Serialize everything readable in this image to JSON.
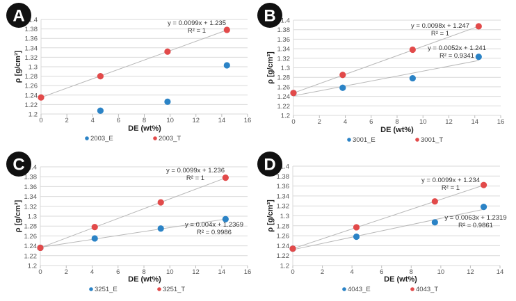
{
  "colors": {
    "E": "#2b83c6",
    "T": "#e24a4a",
    "trend": "#b8b8b8",
    "grid": "#d9d9d9"
  },
  "chart_data": [
    {
      "panel": "A",
      "type": "scatter",
      "xlabel": "DE (wt%)",
      "ylabel": "ρ [g/cm³]",
      "xlim": [
        0,
        16
      ],
      "xticks": [
        "0",
        "2",
        "4",
        "6",
        "8",
        "10",
        "12",
        "14",
        "16"
      ],
      "ylim": [
        1.2,
        1.4
      ],
      "yticks": [
        "1.2",
        "1.22",
        "1.24",
        "1.26",
        "1.28",
        "1.3",
        "1.32",
        "1.34",
        "1.36",
        "1.38",
        "1.4"
      ],
      "grid": true,
      "legend": "bottom",
      "series": [
        {
          "name": "2003_E",
          "x": [
            4.6,
            9.8,
            14.4
          ],
          "y": [
            1.207,
            1.226,
            1.303
          ],
          "trend": null
        },
        {
          "name": "2003_T",
          "x": [
            0,
            4.6,
            9.8,
            14.4
          ],
          "y": [
            1.235,
            1.28,
            1.332,
            1.378
          ],
          "trend": {
            "slope": 0.0099,
            "intercept": 1.235,
            "equation": "y = 0.0099x + 1.235",
            "r2": "R² = 1"
          }
        }
      ]
    },
    {
      "panel": "B",
      "type": "scatter",
      "xlabel": "DE (wt%)",
      "ylabel": "ρ [g/cm³]",
      "xlim": [
        0,
        16
      ],
      "xticks": [
        "0",
        "2",
        "4",
        "6",
        "8",
        "10",
        "12",
        "14",
        "16"
      ],
      "ylim": [
        1.2,
        1.4
      ],
      "yticks": [
        "1.2",
        "1.22",
        "1.24",
        "1.26",
        "1.28",
        "1.3",
        "1.32",
        "1.34",
        "1.36",
        "1.38",
        "1.4"
      ],
      "grid": true,
      "legend": "bottom",
      "series": [
        {
          "name": "3001_E",
          "x": [
            0,
            3.8,
            9.2,
            14.3
          ],
          "y": [
            1.247,
            1.258,
            1.278,
            1.323
          ],
          "trend": {
            "slope": 0.0052,
            "intercept": 1.241,
            "equation": "y = 0.0052x + 1.241",
            "r2": "R² = 0.9341"
          }
        },
        {
          "name": "3001_T",
          "x": [
            0,
            3.8,
            9.2,
            14.3
          ],
          "y": [
            1.247,
            1.285,
            1.338,
            1.387
          ],
          "trend": {
            "slope": 0.0098,
            "intercept": 1.247,
            "equation": "y = 0.0098x + 1.247",
            "r2": "R² = 1"
          }
        }
      ]
    },
    {
      "panel": "C",
      "type": "scatter",
      "xlabel": "DE (wt%)",
      "ylabel": "ρ [g/cm³]",
      "xlim": [
        0,
        16
      ],
      "xticks": [
        "0",
        "2",
        "4",
        "6",
        "8",
        "10",
        "12",
        "14",
        "16"
      ],
      "ylim": [
        1.2,
        1.4
      ],
      "yticks": [
        "1.2",
        "1.22",
        "1.24",
        "1.26",
        "1.28",
        "1.3",
        "1.32",
        "1.34",
        "1.36",
        "1.38",
        "1.4"
      ],
      "grid": true,
      "legend": "bottom",
      "series": [
        {
          "name": "3251_E",
          "x": [
            0,
            4.2,
            9.3,
            14.3
          ],
          "y": [
            1.236,
            1.255,
            1.275,
            1.294
          ],
          "trend": {
            "slope": 0.004,
            "intercept": 1.2369,
            "equation": "y = 0.004x + 1.2369",
            "r2": "R² = 0.9986"
          }
        },
        {
          "name": "3251_T",
          "x": [
            0,
            4.2,
            9.3,
            14.3
          ],
          "y": [
            1.236,
            1.278,
            1.328,
            1.378
          ],
          "trend": {
            "slope": 0.0099,
            "intercept": 1.236,
            "equation": "y = 0.0099x + 1.236",
            "r2": "R² = 1"
          }
        }
      ]
    },
    {
      "panel": "D",
      "type": "scatter",
      "xlabel": "DE (wt%)",
      "ylabel": "ρ [g/cm³]",
      "xlim": [
        0,
        14
      ],
      "xticks": [
        "0",
        "2",
        "4",
        "6",
        "8",
        "10",
        "12",
        "14"
      ],
      "ylim": [
        1.2,
        1.4
      ],
      "yticks": [
        "1.2",
        "1.22",
        "1.24",
        "1.26",
        "1.28",
        "1.3",
        "1.32",
        "1.34",
        "1.36",
        "1.38",
        "1.4"
      ],
      "grid": true,
      "legend": "bottom",
      "series": [
        {
          "name": "4043_E",
          "x": [
            0,
            4.3,
            9.6,
            12.9
          ],
          "y": [
            1.234,
            1.258,
            1.287,
            1.318
          ],
          "trend": {
            "slope": 0.0063,
            "intercept": 1.2319,
            "equation": "y = 0.0063x + 1.2319",
            "r2": "R² = 0.9861"
          }
        },
        {
          "name": "4043_T",
          "x": [
            0,
            4.3,
            9.6,
            12.9
          ],
          "y": [
            1.234,
            1.277,
            1.329,
            1.362
          ],
          "trend": {
            "slope": 0.0099,
            "intercept": 1.234,
            "equation": "y = 0.0099x + 1.234",
            "r2": "R² = 1"
          }
        }
      ]
    }
  ]
}
